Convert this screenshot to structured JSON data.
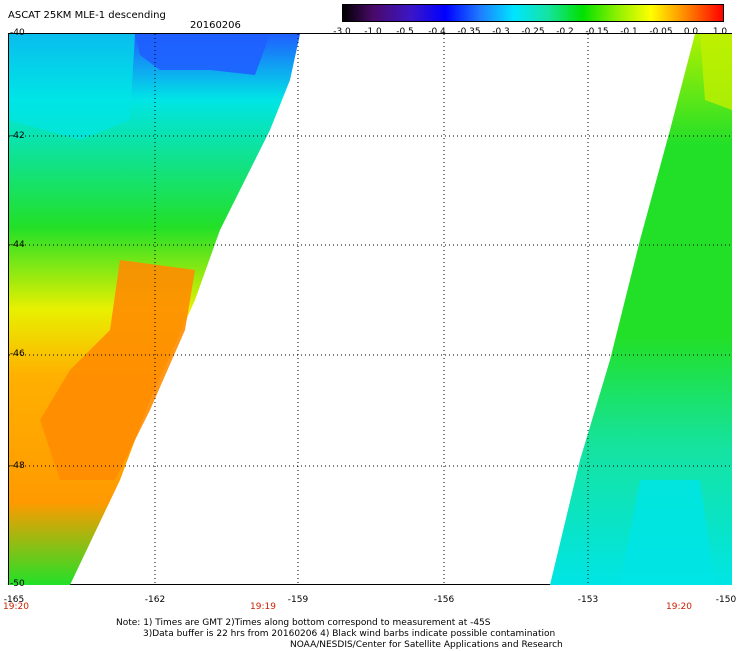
{
  "header": {
    "title": "ASCAT 25KM MLE-1 descending",
    "date": "20160206"
  },
  "colorbar": {
    "labels": [
      "-3.0",
      "-1.0",
      "-0.5",
      "-0.4",
      "-0.35",
      "-0.3",
      "-0.25",
      "-0.2",
      "-0.15",
      "-0.1",
      "-0.05",
      "0.0",
      "1.0"
    ]
  },
  "axes": {
    "lat_labels": [
      "-40",
      "-42",
      "-44",
      "-46",
      "-48",
      "-50"
    ],
    "lon_labels": [
      "-165",
      "-162",
      "-159",
      "-156",
      "-153",
      "-150"
    ],
    "lat_range": [
      -50,
      -40
    ],
    "lon_range": [
      -165,
      -150
    ]
  },
  "times": {
    "left": "19:20",
    "center": "19:19",
    "right": "19:20"
  },
  "notes": {
    "line1": "Note: 1) Times are GMT 2)Times along bottom correspond to measurement at -45S",
    "line2": "3)Data buffer is 22 hrs from 20160206 4) Black wind barbs indicate possible contamination",
    "line3": "NOAA/NESDIS/Center for Satellite Applications and Research"
  },
  "colors": {
    "green": "#22e028",
    "cyan": "#00e5e5",
    "blue": "#1f5fff",
    "yellow": "#ffff00",
    "orange": "#ff8c00",
    "grid": "#000000"
  }
}
